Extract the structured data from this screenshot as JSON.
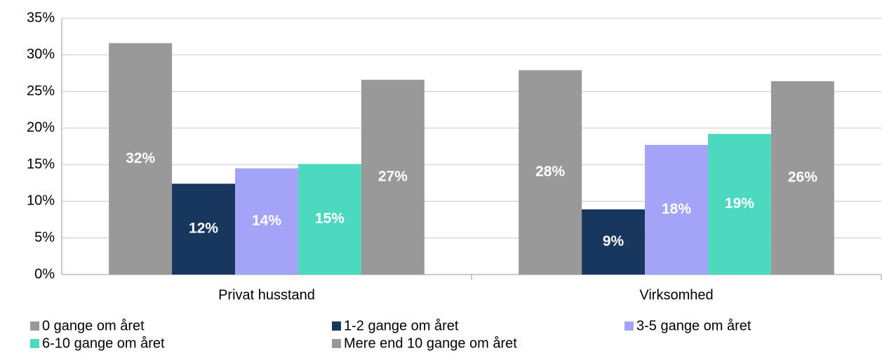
{
  "chart_data": {
    "type": "bar",
    "categories": [
      "Privat husstand",
      "Virksomhed"
    ],
    "series": [
      {
        "name": "0 gange om året",
        "color": "#999999",
        "values": [
          31.6,
          27.9
        ],
        "value_labels": [
          "32%",
          "28%"
        ]
      },
      {
        "name": "1-2 gange om året",
        "color": "#17375e",
        "values": [
          12.4,
          8.9
        ],
        "value_labels": [
          "12%",
          "9%"
        ]
      },
      {
        "name": "3-5 gange om året",
        "color": "#a3a3f7",
        "values": [
          14.5,
          17.7
        ],
        "value_labels": [
          "14%",
          "18%"
        ]
      },
      {
        "name": "6-10 gange om året",
        "color": "#4dd9c0",
        "values": [
          15.1,
          19.2
        ],
        "value_labels": [
          "15%",
          "19%"
        ]
      },
      {
        "name": "Mere end 10 gange om året",
        "color": "#999999",
        "values": [
          26.6,
          26.4
        ],
        "value_labels": [
          "27%",
          "26%"
        ]
      }
    ],
    "ylim": [
      0,
      35
    ],
    "yticks": [
      {
        "value": 0,
        "label": "0%"
      },
      {
        "value": 5,
        "label": "5%"
      },
      {
        "value": 10,
        "label": "10%"
      },
      {
        "value": 15,
        "label": "15%"
      },
      {
        "value": 20,
        "label": "20%"
      },
      {
        "value": 25,
        "label": "25%"
      },
      {
        "value": 30,
        "label": "30%"
      },
      {
        "value": 35,
        "label": "35%"
      }
    ],
    "grid": true
  }
}
